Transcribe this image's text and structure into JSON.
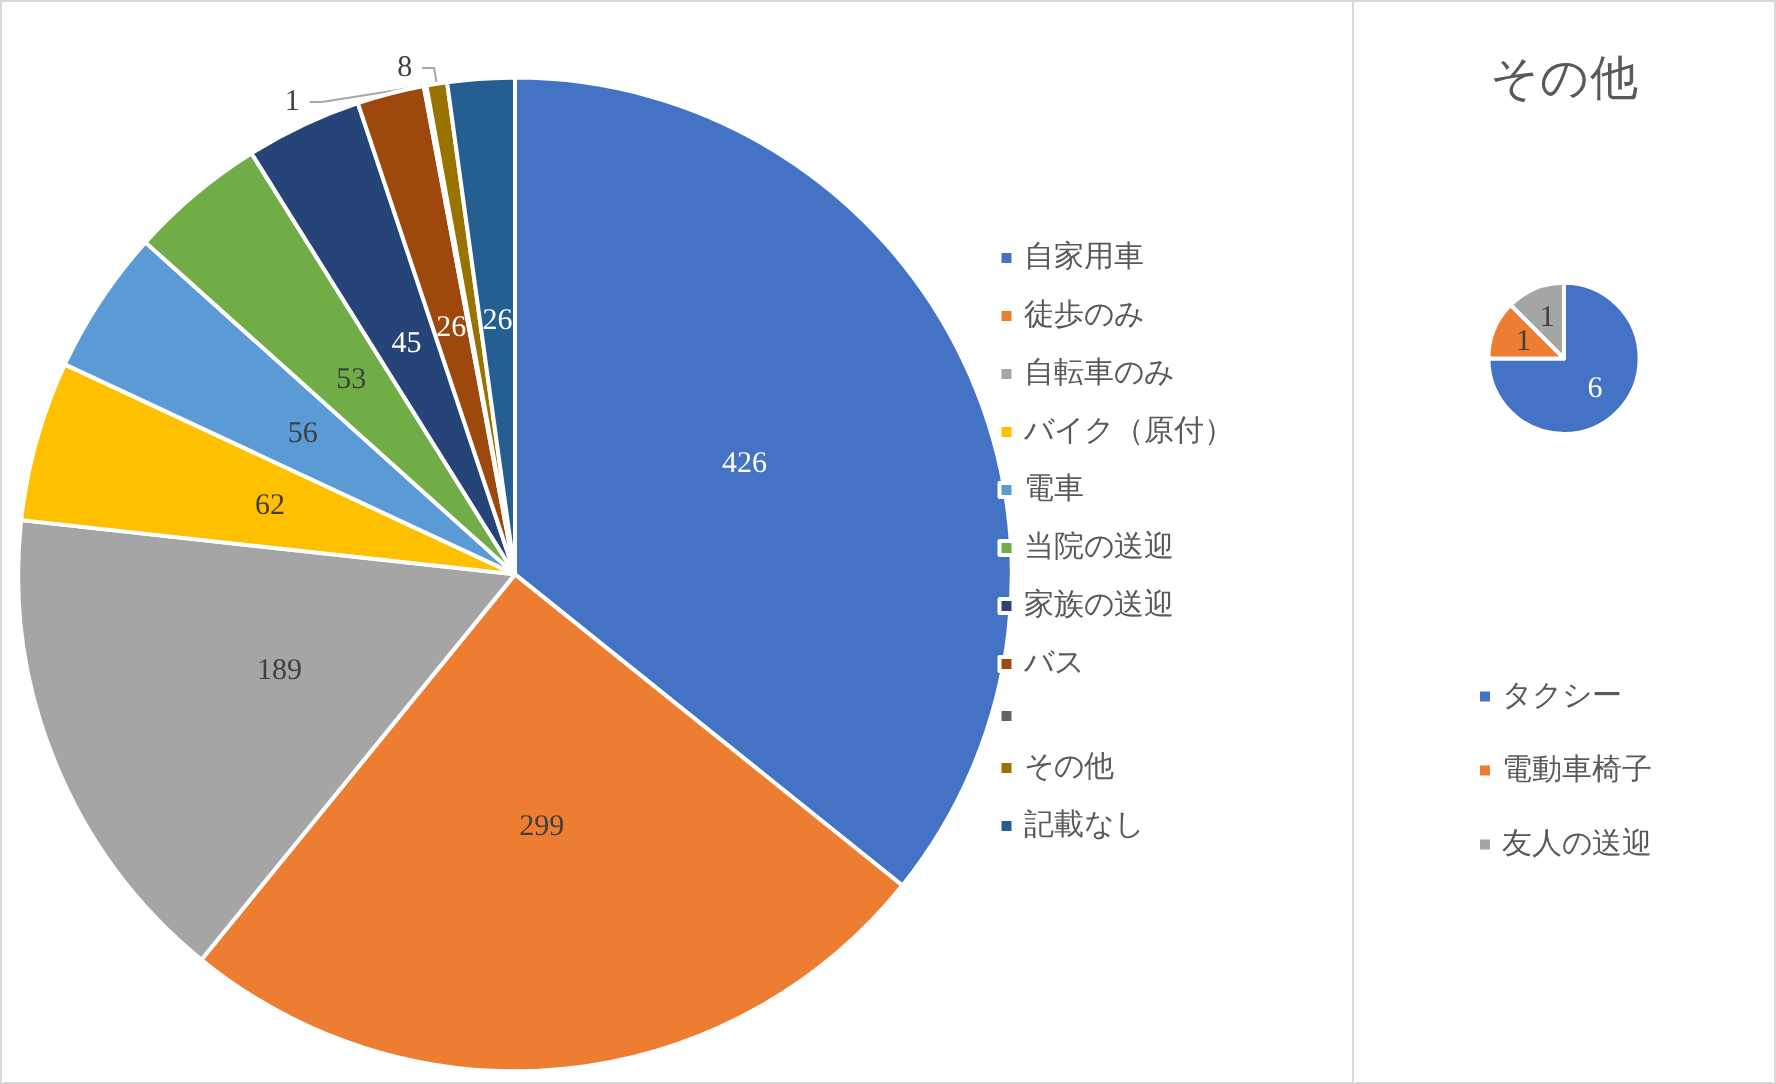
{
  "chart_data": [
    {
      "type": "pie",
      "categories": [
        "自家用車",
        "徒歩のみ",
        "自転車のみ",
        "バイク（原付）",
        "電車",
        "当院の送迎",
        "家族の送迎",
        "バス",
        null,
        "その他",
        "記載なし"
      ],
      "values": [
        426,
        299,
        189,
        62,
        56,
        53,
        45,
        26,
        1,
        8,
        26
      ],
      "colors": [
        "#4472c4",
        "#ed7d31",
        "#a5a5a5",
        "#ffc000",
        "#5b9bd5",
        "#70ad47",
        "#264478",
        "#9e480e",
        "#636363",
        "#997300",
        "#255e91"
      ],
      "data_labels": true,
      "legend": "right"
    },
    {
      "type": "pie",
      "title": "その他",
      "categories": [
        "タクシー",
        "電動車椅子",
        "友人の送迎"
      ],
      "values": [
        6,
        1,
        1
      ],
      "colors": [
        "#4472c4",
        "#ed7d31",
        "#a5a5a5"
      ],
      "data_labels": true,
      "legend": "bottom"
    }
  ]
}
